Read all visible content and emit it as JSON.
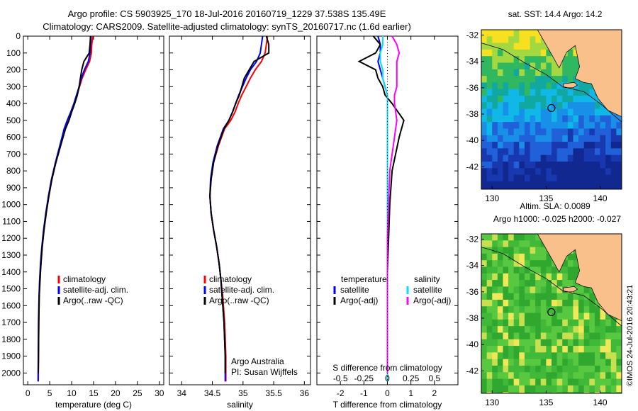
{
  "header": {
    "line1": "Argo profile: CS 5903925_170 18-Jul-2016 20160719_1229 37.538S 135.49E",
    "line2": "Climatology: CARS2009. Satellite-adjusted climatology: synTS_20160717.nc (1.6d earlier)"
  },
  "colors": {
    "climatology": "#ff0000",
    "satellite": "#0000ff",
    "argo": "#000000",
    "s_satellite": "#00e0ff",
    "s_argo": "#ff00ff",
    "land": "#f9c08c"
  },
  "chart_data": [
    {
      "type": "line",
      "panel": "temperature",
      "xlabel": "temperature (deg C)",
      "xlim": [
        -1,
        31
      ],
      "xticks": [
        0,
        5,
        10,
        15,
        20,
        25,
        30
      ],
      "ylim": [
        2070,
        0
      ],
      "yticks": [
        0,
        100,
        200,
        300,
        400,
        500,
        600,
        700,
        800,
        900,
        1000,
        1100,
        1200,
        1300,
        1400,
        1500,
        1600,
        1700,
        1800,
        1900,
        2000
      ],
      "legend": [
        "climatology",
        "satellite-adj. clim.",
        "Argo(..raw -QC)"
      ],
      "series": [
        {
          "name": "climatology",
          "color": "red",
          "x": [
            14.8,
            14.6,
            14.5,
            14.1,
            13.2,
            12.4,
            11.8,
            11.2,
            10.6,
            9.9,
            9.1,
            8.4,
            7.4,
            6.4,
            5.5,
            4.8,
            4.2,
            3.7,
            3.3,
            3.0,
            2.7,
            2.6,
            2.5,
            2.45,
            2.4
          ],
          "y": [
            0,
            50,
            100,
            150,
            200,
            250,
            300,
            350,
            400,
            450,
            500,
            550,
            650,
            750,
            850,
            950,
            1050,
            1150,
            1250,
            1350,
            1450,
            1550,
            1700,
            1900,
            2050
          ]
        },
        {
          "name": "satellite-adj. clim.",
          "color": "blue",
          "x": [
            14.4,
            14.3,
            14.2,
            13.8,
            12.9,
            12.2,
            11.7,
            11.1,
            10.5,
            9.8,
            9.0,
            8.3,
            7.3,
            6.3,
            5.4,
            4.7,
            4.1,
            3.6,
            3.2,
            2.9,
            2.7,
            2.55,
            2.45,
            2.4,
            2.35
          ],
          "y": [
            0,
            50,
            100,
            150,
            200,
            250,
            300,
            350,
            400,
            450,
            500,
            550,
            650,
            750,
            850,
            950,
            1050,
            1150,
            1250,
            1350,
            1450,
            1550,
            1700,
            1900,
            2050
          ]
        },
        {
          "name": "Argo(..raw -QC)",
          "color": "black",
          "x": [
            14.3,
            14.2,
            14.0,
            12.8,
            12.3,
            12.0,
            11.7,
            11.3,
            10.7,
            10.0,
            9.4,
            8.6,
            7.5,
            6.4,
            5.5,
            4.8,
            4.2,
            3.7,
            3.3,
            3.0,
            2.8,
            2.6,
            2.5,
            2.45,
            2.4
          ],
          "y": [
            0,
            50,
            100,
            150,
            200,
            250,
            300,
            350,
            400,
            450,
            500,
            550,
            650,
            750,
            850,
            950,
            1050,
            1150,
            1250,
            1350,
            1450,
            1550,
            1700,
            1900,
            2000
          ]
        }
      ]
    },
    {
      "type": "line",
      "panel": "salinity",
      "xlabel": "salinity",
      "xlim": [
        33.8,
        36.1
      ],
      "xticks": [
        34,
        34.5,
        35,
        35.5,
        36
      ],
      "ylim": [
        2070,
        0
      ],
      "legend": [
        "climatology",
        "satellite-adj. clim.",
        "Argo(..raw -QC)"
      ],
      "annotation": [
        "Argo Australia",
        "PI: Susan Wijffels"
      ],
      "series": [
        {
          "name": "climatology",
          "color": "red",
          "x": [
            35.4,
            35.38,
            35.36,
            35.3,
            35.2,
            35.12,
            35.05,
            34.98,
            34.92,
            34.87,
            34.8,
            34.7,
            34.6,
            34.52,
            34.48,
            34.46,
            34.48,
            34.52,
            34.57,
            34.61,
            34.64,
            34.67,
            34.7,
            34.72,
            34.72
          ],
          "y": [
            0,
            50,
            100,
            150,
            200,
            250,
            300,
            350,
            400,
            450,
            500,
            550,
            650,
            750,
            850,
            950,
            1050,
            1150,
            1250,
            1350,
            1450,
            1550,
            1700,
            1900,
            2050
          ]
        },
        {
          "name": "satellite-adj. clim.",
          "color": "blue",
          "x": [
            35.32,
            35.3,
            35.28,
            35.22,
            35.12,
            35.05,
            34.99,
            34.93,
            34.88,
            34.83,
            34.77,
            34.68,
            34.58,
            34.51,
            34.47,
            34.46,
            34.48,
            34.52,
            34.57,
            34.61,
            34.64,
            34.66,
            34.69,
            34.71,
            34.71
          ],
          "y": [
            0,
            50,
            100,
            150,
            200,
            250,
            300,
            350,
            400,
            450,
            500,
            550,
            650,
            750,
            850,
            950,
            1050,
            1150,
            1250,
            1350,
            1450,
            1550,
            1700,
            1900,
            2050
          ]
        },
        {
          "name": "Argo(..raw -QC)",
          "color": "black",
          "x": [
            35.38,
            35.42,
            35.42,
            35.18,
            35.1,
            35.02,
            34.98,
            34.94,
            34.88,
            34.83,
            34.77,
            34.69,
            34.59,
            34.52,
            34.48,
            34.46,
            34.48,
            34.52,
            34.57,
            34.61,
            34.64,
            34.66,
            34.69,
            34.71,
            34.71
          ],
          "y": [
            0,
            50,
            100,
            150,
            200,
            250,
            300,
            350,
            400,
            450,
            500,
            550,
            650,
            750,
            850,
            950,
            1050,
            1150,
            1250,
            1350,
            1450,
            1550,
            1700,
            1900,
            2000
          ]
        }
      ]
    },
    {
      "type": "line",
      "panel": "difference",
      "xlabel": "T difference from climatology",
      "xlabel_top": "S difference from climatology",
      "xlim": [
        -3,
        3
      ],
      "xticks": [
        -2,
        -1,
        0,
        1,
        2
      ],
      "xticks_top": [
        "-0.5",
        "-0.25",
        "0",
        "0.25",
        "0.5"
      ],
      "ylim": [
        2070,
        0
      ],
      "legend_left_title": "temperature",
      "legend_right_title": "salinity",
      "legend": [
        "satellite",
        "Argo(-adj)",
        "satellite",
        "Argo(-adj)"
      ],
      "series": [
        {
          "name": "temperature satellite",
          "color": "blue",
          "x": [
            -0.4,
            -0.3,
            -0.3,
            -0.4,
            -0.3,
            -0.2,
            -0.1,
            0,
            0,
            0,
            0,
            0,
            0,
            0,
            0,
            0,
            0,
            0
          ],
          "y": [
            0,
            50,
            100,
            150,
            200,
            250,
            300,
            350,
            400,
            500,
            600,
            800,
            1000,
            1200,
            1400,
            1600,
            1800,
            2050
          ]
        },
        {
          "name": "temperature Argo(-adj)",
          "color": "black",
          "x": [
            -0.6,
            -0.3,
            -0.5,
            -1.2,
            -0.5,
            -0.4,
            -0.2,
            -0.1,
            0.2,
            0.7,
            0.5,
            0.2,
            0.1,
            0.05,
            0,
            0,
            0,
            0
          ],
          "y": [
            0,
            50,
            100,
            150,
            200,
            250,
            300,
            350,
            400,
            500,
            600,
            800,
            1000,
            1200,
            1400,
            1600,
            1800,
            2000
          ]
        },
        {
          "name": "salinity satellite",
          "color": "cyan",
          "x": [
            -0.2,
            -0.2,
            -0.3,
            -0.3,
            -0.2,
            -0.2,
            -0.1,
            0,
            0,
            0,
            0,
            0,
            0,
            0,
            0,
            0,
            0,
            0
          ],
          "y": [
            0,
            50,
            100,
            150,
            200,
            250,
            300,
            350,
            400,
            500,
            600,
            800,
            1000,
            1200,
            1400,
            1600,
            1800,
            2050
          ]
        },
        {
          "name": "salinity Argo(-adj)",
          "color": "magenta",
          "x": [
            0.2,
            0.4,
            0.5,
            0.4,
            0.4,
            0.4,
            0.4,
            0.3,
            0.3,
            0.4,
            0.3,
            0.1,
            0.05,
            0,
            0,
            0,
            0,
            0
          ],
          "y": [
            0,
            50,
            100,
            150,
            200,
            250,
            300,
            350,
            400,
            500,
            600,
            800,
            1000,
            1200,
            1400,
            1600,
            1800,
            2000
          ]
        }
      ]
    },
    {
      "type": "heatmap",
      "panel": "sst_map",
      "title": "sat. SST: 14.4 Argo: 14.2",
      "xlim": [
        129,
        142
      ],
      "ylim": [
        -43.7,
        -31.6
      ],
      "xticks": [
        130,
        135,
        140
      ],
      "yticks": [
        -32,
        -34,
        -36,
        -38,
        -40,
        -42
      ],
      "marker": {
        "lon": 135.49,
        "lat": -37.54
      }
    },
    {
      "type": "heatmap",
      "panel": "sla_map",
      "title": "Altim. SLA: 0.0089",
      "subtitle": "Argo h1000: -0.025 h2000: -0.027",
      "xlim": [
        129,
        142
      ],
      "ylim": [
        -43.7,
        -31.6
      ],
      "xticks": [
        130,
        135,
        140
      ],
      "yticks": [
        -32,
        -34,
        -36,
        -38,
        -40,
        -42
      ],
      "marker": {
        "lon": 135.49,
        "lat": -37.54
      }
    }
  ],
  "stamp": "©IMOS 24-Jul-2016 20:43:21"
}
